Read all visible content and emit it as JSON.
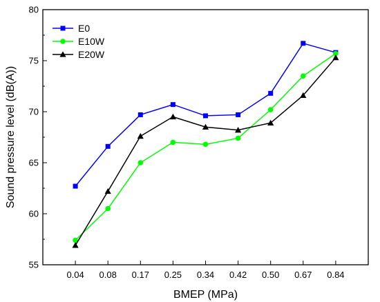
{
  "chart_data": {
    "type": "line",
    "categories": [
      "0.04",
      "0.08",
      "0.17",
      "0.25",
      "0.34",
      "0.42",
      "0.50",
      "0.67",
      "0.84"
    ],
    "xlabel": "BMEP (MPa)",
    "ylabel": "Sound pressure level (dB(A))",
    "ylim": [
      55,
      80
    ],
    "yticks": [
      55,
      60,
      65,
      70,
      75,
      80
    ],
    "grid": false,
    "legend": "top-left",
    "series": [
      {
        "name": "E0",
        "color": "#0000ff",
        "marker": "square",
        "values": [
          62.7,
          66.6,
          69.7,
          70.7,
          69.6,
          69.7,
          71.8,
          76.7,
          75.8
        ]
      },
      {
        "name": "E10W",
        "color": "#00ff00",
        "marker": "circle",
        "values": [
          57.4,
          60.5,
          65.0,
          67.0,
          66.8,
          67.4,
          70.2,
          73.5,
          75.7
        ]
      },
      {
        "name": "E20W",
        "color": "#000000",
        "marker": "triangle",
        "values": [
          56.9,
          62.2,
          67.6,
          69.5,
          68.5,
          68.2,
          68.9,
          71.6,
          75.3
        ]
      }
    ]
  }
}
